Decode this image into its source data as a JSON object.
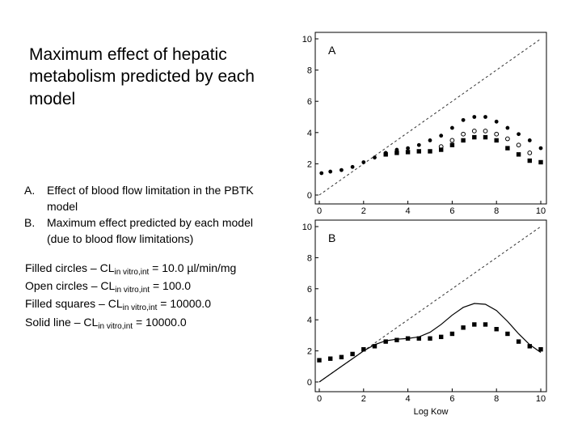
{
  "slide": {
    "title": "Maximum effect of hepatic metabolism predicted by each model",
    "list": [
      {
        "marker": "A.",
        "text": "Effect of blood flow limitation in the PBTK model"
      },
      {
        "marker": "B.",
        "text": "Maximum effect predicted by each model (due to blood flow limitations)"
      }
    ],
    "legend": [
      {
        "prefix": "Filled circles – CL",
        "sub": "in vitro,int",
        "suffix": " = 10.0 µl/min/mg"
      },
      {
        "prefix": "Open circles – CL",
        "sub": "in vitro,int",
        "suffix": " = 100.0"
      },
      {
        "prefix": "Filled squares – CL",
        "sub": "in vitro,int",
        "suffix": " = 10000.0"
      },
      {
        "prefix": "Solid line – CL",
        "sub": "in vitro,int",
        "suffix": " = 10000.0"
      }
    ]
  },
  "chart_data": [
    {
      "panel": "A",
      "type": "scatter",
      "xlabel": "",
      "ylabel": "",
      "xlim": [
        0,
        10
      ],
      "ylim": [
        0,
        10
      ],
      "xticks": [
        0,
        2,
        4,
        6,
        8,
        10
      ],
      "yticks": [
        0,
        2,
        4,
        6,
        8,
        10
      ],
      "reference_line": {
        "style": "dashed",
        "points": [
          [
            0,
            0
          ],
          [
            10,
            10
          ]
        ]
      },
      "series": [
        {
          "marker": "filled-circle",
          "x": [
            0.1,
            0.5,
            1.0,
            1.5,
            2.0,
            2.5,
            3.0,
            3.5,
            4.0,
            4.5,
            5.0,
            5.5,
            6.0,
            6.5,
            7.0,
            7.5,
            8.0,
            8.5,
            9.0,
            9.5,
            10.0
          ],
          "y": [
            1.4,
            1.5,
            1.6,
            1.8,
            2.1,
            2.4,
            2.7,
            2.9,
            3.0,
            3.2,
            3.5,
            3.8,
            4.3,
            4.8,
            5.0,
            5.0,
            4.7,
            4.3,
            3.9,
            3.5,
            3.0
          ]
        },
        {
          "marker": "open-circle",
          "x": [
            5.5,
            6.0,
            6.5,
            7.0,
            7.5,
            8.0,
            8.5,
            9.0,
            9.5
          ],
          "y": [
            3.1,
            3.5,
            3.9,
            4.1,
            4.1,
            3.9,
            3.6,
            3.2,
            2.7
          ]
        },
        {
          "marker": "filled-square",
          "x": [
            3.0,
            3.5,
            4.0,
            4.5,
            5.0,
            5.5,
            6.0,
            6.5,
            7.0,
            7.5,
            8.0,
            8.5,
            9.0,
            9.5,
            10.0
          ],
          "y": [
            2.6,
            2.7,
            2.75,
            2.8,
            2.8,
            2.9,
            3.2,
            3.5,
            3.7,
            3.7,
            3.5,
            3.0,
            2.6,
            2.2,
            2.1
          ]
        }
      ]
    },
    {
      "panel": "B",
      "type": "scatter",
      "xlabel": "Log Kow",
      "ylabel": "",
      "xlim": [
        0,
        10
      ],
      "ylim": [
        0,
        10
      ],
      "xticks": [
        0,
        2,
        4,
        6,
        8,
        10
      ],
      "yticks": [
        0,
        2,
        4,
        6,
        8,
        10
      ],
      "reference_line": {
        "style": "dashed",
        "points": [
          [
            0,
            0
          ],
          [
            10,
            10
          ]
        ]
      },
      "series": [
        {
          "marker": "filled-square",
          "x": [
            0.0,
            0.5,
            1.0,
            1.5,
            2.0,
            2.5,
            3.0,
            3.5,
            4.0,
            4.5,
            5.0,
            5.5,
            6.0,
            6.5,
            7.0,
            7.5,
            8.0,
            8.5,
            9.0,
            9.5,
            10.0
          ],
          "y": [
            1.4,
            1.5,
            1.6,
            1.8,
            2.1,
            2.3,
            2.6,
            2.7,
            2.8,
            2.8,
            2.8,
            2.9,
            3.1,
            3.5,
            3.7,
            3.7,
            3.4,
            3.1,
            2.6,
            2.3,
            2.1
          ]
        },
        {
          "marker": "solid-line",
          "x": [
            0.0,
            0.5,
            1.0,
            1.5,
            2.0,
            2.5,
            3.0,
            3.5,
            4.0,
            4.5,
            5.0,
            5.5,
            6.0,
            6.5,
            7.0,
            7.5,
            8.0,
            8.5,
            9.0,
            9.5,
            10.0
          ],
          "y": [
            0.0,
            0.5,
            1.0,
            1.5,
            2.0,
            2.4,
            2.65,
            2.75,
            2.8,
            2.9,
            3.2,
            3.7,
            4.3,
            4.8,
            5.05,
            5.0,
            4.6,
            3.9,
            3.1,
            2.4,
            1.9
          ]
        }
      ]
    }
  ]
}
